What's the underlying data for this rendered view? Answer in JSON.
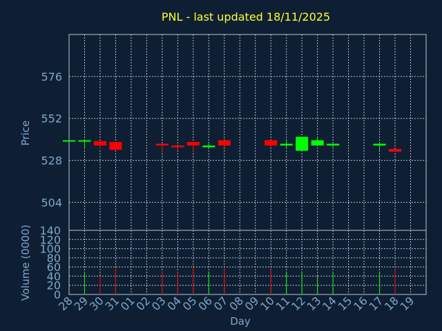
{
  "chart_data": {
    "type": "candlestick",
    "title": "PNL - last updated 18/11/2025",
    "xlabel": "Day",
    "ylabel_price": "Price",
    "ylabel_volume": "Volume (0000)",
    "x_ticks": [
      "28",
      "29",
      "30",
      "31",
      "01",
      "02",
      "03",
      "04",
      "05",
      "06",
      "07",
      "08",
      "09",
      "10",
      "11",
      "12",
      "13",
      "14",
      "15",
      "16",
      "17",
      "18",
      "19"
    ],
    "price_ticks": [
      504,
      528,
      552,
      576
    ],
    "price_ylim": [
      488,
      600
    ],
    "volume_ticks": [
      0,
      20,
      40,
      60,
      80,
      100,
      120,
      140
    ],
    "volume_ylim": [
      0,
      140
    ],
    "colors": {
      "up": "#00ff00",
      "down": "#ff0000",
      "grid": "#b8c4d0",
      "axis": "#7fa6c9",
      "title": "#ffff33"
    },
    "candles": [
      {
        "day": "28",
        "open": 539.5,
        "high": 539.5,
        "low": 539.5,
        "close": 539.5,
        "volume": 0
      },
      {
        "day": "29",
        "open": 539.0,
        "high": 539.5,
        "low": 534.5,
        "close": 539.5,
        "volume": 50
      },
      {
        "day": "30",
        "open": 539.0,
        "high": 539.0,
        "low": 534.5,
        "close": 536.5,
        "volume": 40
      },
      {
        "day": "31",
        "open": 538.5,
        "high": 538.5,
        "low": 533.5,
        "close": 534.0,
        "volume": 60
      },
      {
        "day": "03",
        "open": 537.5,
        "high": 537.5,
        "low": 532.5,
        "close": 536.5,
        "volume": 50
      },
      {
        "day": "04",
        "open": 536.5,
        "high": 536.5,
        "low": 534.0,
        "close": 535.5,
        "volume": 50
      },
      {
        "day": "05",
        "open": 538.5,
        "high": 538.5,
        "low": 532.5,
        "close": 536.5,
        "volume": 60
      },
      {
        "day": "06",
        "open": 535.5,
        "high": 537.5,
        "low": 535.0,
        "close": 536.5,
        "volume": 50
      },
      {
        "day": "07",
        "open": 539.5,
        "high": 539.5,
        "low": 535.5,
        "close": 536.5,
        "volume": 60
      },
      {
        "day": "10",
        "open": 539.5,
        "high": 539.5,
        "low": 535.5,
        "close": 536.5,
        "volume": 55
      },
      {
        "day": "11",
        "open": 536.5,
        "high": 539.5,
        "low": 535.5,
        "close": 537.5,
        "volume": 50
      },
      {
        "day": "12",
        "open": 533.5,
        "high": 541.5,
        "low": 533.5,
        "close": 541.5,
        "volume": 50
      },
      {
        "day": "13",
        "open": 536.5,
        "high": 541.5,
        "low": 536.5,
        "close": 539.5,
        "volume": 40
      },
      {
        "day": "14",
        "open": 536.5,
        "high": 537.5,
        "low": 535.5,
        "close": 537.5,
        "volume": 50
      },
      {
        "day": "17",
        "open": 536.5,
        "high": 538.5,
        "low": 533.5,
        "close": 537.5,
        "volume": 50
      },
      {
        "day": "18",
        "open": 534.5,
        "high": 534.5,
        "low": 532.5,
        "close": 533.0,
        "volume": 55
      }
    ]
  }
}
